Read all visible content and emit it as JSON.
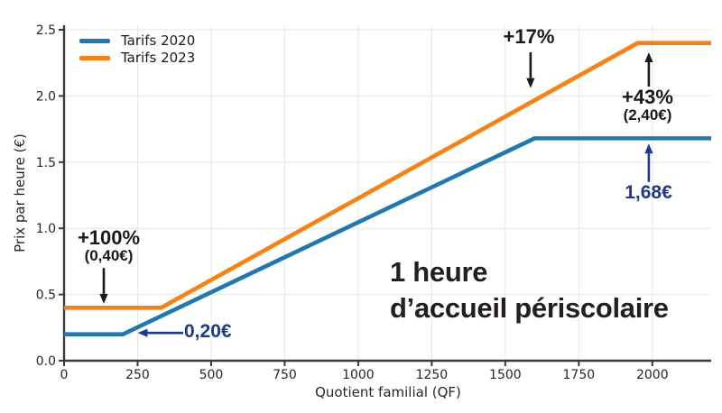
{
  "chart_data": {
    "type": "line",
    "inline_title": [
      "1 heure",
      "d’accueil périscolaire"
    ],
    "xlabel": "Quotient familial (QF)",
    "ylabel": "Prix par heure (€)",
    "xlim": [
      0,
      2200
    ],
    "ylim": [
      0,
      2.5
    ],
    "x_ticks": [
      0,
      250,
      500,
      750,
      1000,
      1250,
      1500,
      1750,
      2000
    ],
    "y_ticks": [
      {
        "v": 0,
        "label": "0.0"
      },
      {
        "v": 0.5,
        "label": "0.5"
      },
      {
        "v": 1,
        "label": "1.0"
      },
      {
        "v": 1.5,
        "label": "1.5"
      },
      {
        "v": 2,
        "label": "2.0"
      },
      {
        "v": 2.5,
        "label": "2.5"
      }
    ],
    "grid": true,
    "legend_position": "upper-left",
    "series": [
      {
        "name": "Tarifs 2020",
        "color": "#1f77b4",
        "points": [
          [
            0,
            0.2
          ],
          [
            200,
            0.2
          ],
          [
            1600,
            1.68
          ],
          [
            2200,
            1.68
          ]
        ]
      },
      {
        "name": "Tarifs 2023",
        "color": "#ff7f0e",
        "points": [
          [
            0,
            0.4
          ],
          [
            330,
            0.4
          ],
          [
            1950,
            2.4
          ],
          [
            2200,
            2.4
          ]
        ]
      }
    ],
    "annotations": [
      {
        "lines": [
          "+100%",
          "(0,40€)"
        ],
        "color": "#1a1a1a",
        "arrow": {
          "from": [
            135,
            0.7
          ],
          "to": [
            135,
            0.43
          ]
        }
      },
      {
        "lines": [
          "0,20€"
        ],
        "color": "#1b3a8f",
        "arrow": {
          "from": [
            405,
            0.21
          ],
          "to": [
            250,
            0.21
          ]
        }
      },
      {
        "lines": [
          "+17%"
        ],
        "color": "#1a1a1a",
        "arrow": {
          "from": [
            1586,
            2.33
          ],
          "to": [
            1586,
            2.06
          ]
        }
      },
      {
        "lines": [
          "+43%",
          "(2,40€)"
        ],
        "color": "#1a1a1a",
        "arrow": {
          "from": [
            1988,
            2.07
          ],
          "to": [
            1988,
            2.33
          ]
        }
      },
      {
        "lines": [
          "1,68€"
        ],
        "color": "#1b3a8f",
        "arrow": {
          "from": [
            1988,
            1.35
          ],
          "to": [
            1988,
            1.64
          ]
        }
      }
    ],
    "colors": {
      "accent_blue": "#1f77b4",
      "accent_orange": "#ff7f0e",
      "annotation_navy": "#1b3a8f",
      "annotation_black": "#1a1a1a",
      "grid": "#e6e6e6",
      "spine": "#3a3a3a",
      "background": "#ffffff"
    }
  }
}
